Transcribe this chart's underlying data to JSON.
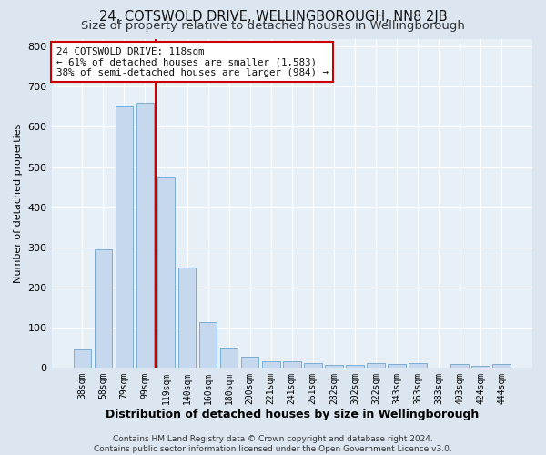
{
  "title": "24, COTSWOLD DRIVE, WELLINGBOROUGH, NN8 2JB",
  "subtitle": "Size of property relative to detached houses in Wellingborough",
  "xlabel": "Distribution of detached houses by size in Wellingborough",
  "ylabel": "Number of detached properties",
  "categories": [
    "38sqm",
    "58sqm",
    "79sqm",
    "99sqm",
    "119sqm",
    "140sqm",
    "160sqm",
    "180sqm",
    "200sqm",
    "221sqm",
    "241sqm",
    "261sqm",
    "282sqm",
    "302sqm",
    "322sqm",
    "343sqm",
    "363sqm",
    "383sqm",
    "403sqm",
    "424sqm",
    "444sqm"
  ],
  "values": [
    45,
    295,
    650,
    660,
    475,
    250,
    113,
    50,
    27,
    15,
    15,
    10,
    7,
    7,
    10,
    8,
    10,
    0,
    8,
    5,
    8
  ],
  "bar_color": "#c5d8ee",
  "bar_edge_color": "#7aadd4",
  "vline_x_index": 3.5,
  "vline_color": "#cc0000",
  "annotation_line1": "24 COTSWOLD DRIVE: 118sqm",
  "annotation_line2": "← 61% of detached houses are smaller (1,583)",
  "annotation_line3": "38% of semi-detached houses are larger (984) →",
  "annotation_box_color": "#cc0000",
  "annotation_bg": "#ffffff",
  "ylim": [
    0,
    820
  ],
  "yticks": [
    0,
    100,
    200,
    300,
    400,
    500,
    600,
    700,
    800
  ],
  "title_fontsize": 10.5,
  "subtitle_fontsize": 9.5,
  "xlabel_fontsize": 9,
  "ylabel_fontsize": 8,
  "footer_text": "Contains HM Land Registry data © Crown copyright and database right 2024.\nContains public sector information licensed under the Open Government Licence v3.0.",
  "bg_color": "#dce6f0",
  "plot_bg_color": "#e8f0f7",
  "grid_color": "#ffffff"
}
